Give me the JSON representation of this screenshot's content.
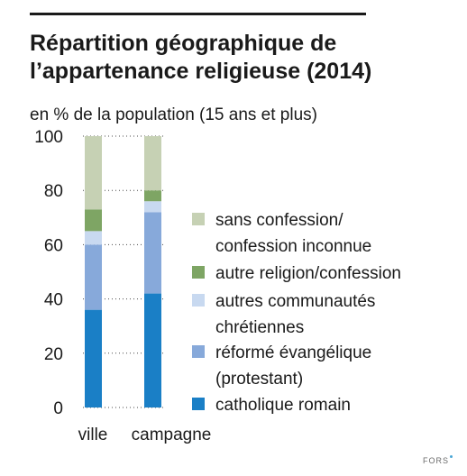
{
  "title": "Répartition géographique de l’appartenance religieuse (2014)",
  "subtitle": "en % de la population (15 ans et plus)",
  "footer": "FORS",
  "colors": {
    "catholique": "#1a7fc6",
    "reforme": "#87a9da",
    "autres_chretiennes": "#c8d9f0",
    "autre_religion": "#7ea564",
    "sans_confession": "#c6d1b4"
  },
  "chart_data": {
    "type": "bar",
    "stacked": true,
    "categories": [
      "ville",
      "campagne"
    ],
    "ylim": [
      0,
      100
    ],
    "yticks": [
      "0",
      "20",
      "40",
      "60",
      "80",
      "100"
    ],
    "grid": "dotted horizontal",
    "legend_position": "right",
    "series": [
      {
        "name": "catholique romain",
        "key": "catholique",
        "values": [
          36,
          42
        ]
      },
      {
        "name": "réformé évangélique (protestant)",
        "key": "reforme",
        "values": [
          24,
          30
        ]
      },
      {
        "name": "autres communautés chrétiennes",
        "key": "autres_chretiennes",
        "values": [
          5,
          4
        ]
      },
      {
        "name": "autre religion/confession",
        "key": "autre_religion",
        "values": [
          8,
          4
        ]
      },
      {
        "name": "sans confession/ confession inconnue",
        "key": "sans_confession",
        "values": [
          27,
          20
        ]
      }
    ],
    "legend": [
      {
        "key": "sans_confession",
        "lines": [
          "sans confession/",
          "confession inconnue"
        ]
      },
      {
        "key": "autre_religion",
        "lines": [
          "autre religion/confession"
        ]
      },
      {
        "key": "autres_chretiennes",
        "lines": [
          "autres communautés",
          "chrétiennes"
        ]
      },
      {
        "key": "reforme",
        "lines": [
          "réformé évangélique",
          "(protestant)"
        ]
      },
      {
        "key": "catholique",
        "lines": [
          "catholique romain"
        ]
      }
    ]
  }
}
